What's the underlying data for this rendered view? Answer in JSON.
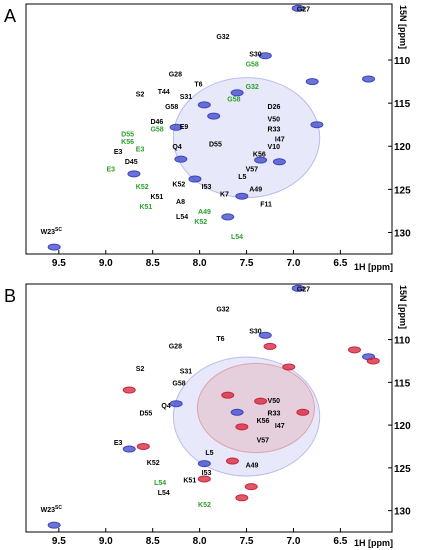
{
  "chart_data": [
    {
      "type": "scatter",
      "panel": "A",
      "xlabel": "1H [ppm]",
      "ylabel": "15N [ppm]",
      "xlim": [
        9.85,
        5.95
      ],
      "ylim": [
        132.5,
        103.5
      ],
      "x_ticks": [
        9.5,
        9.0,
        8.5,
        8.0,
        7.5,
        7.0,
        6.5
      ],
      "y_ticks": [
        110,
        115,
        120,
        125,
        130
      ],
      "series": [
        {
          "color": "#3b45c4",
          "points": [
            {
              "x": 6.95,
              "y": 104.0
            },
            {
              "x": 7.3,
              "y": 109.5
            },
            {
              "x": 6.8,
              "y": 112.5
            },
            {
              "x": 6.2,
              "y": 112.2
            },
            {
              "x": 7.85,
              "y": 116.5
            },
            {
              "x": 8.25,
              "y": 117.8
            },
            {
              "x": 6.75,
              "y": 117.5
            },
            {
              "x": 7.6,
              "y": 113.8
            },
            {
              "x": 7.95,
              "y": 115.2
            },
            {
              "x": 7.15,
              "y": 121.8
            },
            {
              "x": 8.05,
              "y": 123.8
            },
            {
              "x": 8.2,
              "y": 121.5
            },
            {
              "x": 8.7,
              "y": 123.2
            },
            {
              "x": 7.7,
              "y": 128.2
            },
            {
              "x": 9.55,
              "y": 131.7
            },
            {
              "x": 7.55,
              "y": 125.8
            },
            {
              "x": 7.35,
              "y": 121.6
            }
          ]
        }
      ],
      "peak_labels": [
        {
          "text": "G27",
          "color": "#000000"
        },
        {
          "text": "G32",
          "color": "#000000"
        },
        {
          "text": "S30",
          "color": "#000000"
        },
        {
          "text": "G58",
          "color": "#2ca02c"
        },
        {
          "text": "G28",
          "color": "#000000"
        },
        {
          "text": "T44",
          "color": "#000000"
        },
        {
          "text": "T6",
          "color": "#000000"
        },
        {
          "text": "G32",
          "color": "#2ca02c"
        },
        {
          "text": "S2",
          "color": "#000000"
        },
        {
          "text": "S31",
          "color": "#000000"
        },
        {
          "text": "G58",
          "color": "#000000"
        },
        {
          "text": "G58",
          "color": "#2ca02c"
        },
        {
          "text": "D26",
          "color": "#000000"
        },
        {
          "text": "D46",
          "color": "#000000"
        },
        {
          "text": "E9",
          "color": "#000000"
        },
        {
          "text": "V50",
          "color": "#000000"
        },
        {
          "text": "G58",
          "color": "#2ca02c"
        },
        {
          "text": "D55",
          "color": "#2ca02c"
        },
        {
          "text": "R33",
          "color": "#000000"
        },
        {
          "text": "K56",
          "color": "#2ca02c"
        },
        {
          "text": "D55",
          "color": "#000000"
        },
        {
          "text": "I47",
          "color": "#000000"
        },
        {
          "text": "E3",
          "color": "#2ca02c"
        },
        {
          "text": "Q4",
          "color": "#000000"
        },
        {
          "text": "V10",
          "color": "#000000"
        },
        {
          "text": "E3",
          "color": "#000000"
        },
        {
          "text": "K56",
          "color": "#000000"
        },
        {
          "text": "D45",
          "color": "#000000"
        },
        {
          "text": "E3",
          "color": "#2ca02c"
        },
        {
          "text": "V57",
          "color": "#000000"
        },
        {
          "text": "L5",
          "color": "#000000"
        },
        {
          "text": "K52",
          "color": "#2ca02c"
        },
        {
          "text": "K52",
          "color": "#000000"
        },
        {
          "text": "I53",
          "color": "#000000"
        },
        {
          "text": "A49",
          "color": "#000000"
        },
        {
          "text": "K51",
          "color": "#000000"
        },
        {
          "text": "K7",
          "color": "#000000"
        },
        {
          "text": "F11",
          "color": "#000000"
        },
        {
          "text": "K51",
          "color": "#2ca02c"
        },
        {
          "text": "A8",
          "color": "#000000"
        },
        {
          "text": "A49",
          "color": "#2ca02c"
        },
        {
          "text": "L54",
          "color": "#000000"
        },
        {
          "text": "K52",
          "color": "#2ca02c"
        },
        {
          "text": "L54",
          "color": "#2ca02c"
        },
        {
          "text": "W23",
          "sup": "SC",
          "color": "#000000"
        }
      ]
    },
    {
      "type": "scatter",
      "panel": "B",
      "xlabel": "1H [ppm]",
      "ylabel": "15N [ppm]",
      "xlim": [
        9.85,
        5.95
      ],
      "ylim": [
        132.5,
        103.5
      ],
      "x_ticks": [
        9.5,
        9.0,
        8.5,
        8.0,
        7.5,
        7.0,
        6.5
      ],
      "y_ticks": [
        110,
        115,
        120,
        125,
        130
      ],
      "series": [
        {
          "color": "#3b45c4",
          "points": [
            {
              "x": 6.95,
              "y": 104.0
            },
            {
              "x": 7.3,
              "y": 109.5
            },
            {
              "x": 8.25,
              "y": 117.5
            },
            {
              "x": 8.75,
              "y": 122.8
            },
            {
              "x": 7.95,
              "y": 124.5
            },
            {
              "x": 6.2,
              "y": 112.0
            },
            {
              "x": 9.55,
              "y": 131.7
            },
            {
              "x": 7.6,
              "y": 118.5
            }
          ]
        },
        {
          "color": "#d0223a",
          "points": [
            {
              "x": 8.75,
              "y": 115.9
            },
            {
              "x": 7.25,
              "y": 110.8
            },
            {
              "x": 7.05,
              "y": 113.2
            },
            {
              "x": 6.35,
              "y": 111.2
            },
            {
              "x": 6.15,
              "y": 112.5
            },
            {
              "x": 7.7,
              "y": 116.5
            },
            {
              "x": 7.55,
              "y": 120.2
            },
            {
              "x": 8.6,
              "y": 122.5
            },
            {
              "x": 7.65,
              "y": 124.2
            },
            {
              "x": 7.95,
              "y": 126.3
            },
            {
              "x": 7.45,
              "y": 127.2
            },
            {
              "x": 7.55,
              "y": 128.5
            },
            {
              "x": 6.9,
              "y": 118.5
            },
            {
              "x": 7.35,
              "y": 117.2
            }
          ]
        }
      ],
      "peak_labels": [
        {
          "text": "G27",
          "color": "#000000"
        },
        {
          "text": "G32",
          "color": "#000000"
        },
        {
          "text": "S30",
          "color": "#000000"
        },
        {
          "text": "G28",
          "color": "#000000"
        },
        {
          "text": "T6",
          "color": "#000000"
        },
        {
          "text": "S2",
          "color": "#000000"
        },
        {
          "text": "S31",
          "color": "#000000"
        },
        {
          "text": "G58",
          "color": "#000000"
        },
        {
          "text": "Q4",
          "color": "#000000"
        },
        {
          "text": "V50",
          "color": "#000000"
        },
        {
          "text": "D55",
          "color": "#000000"
        },
        {
          "text": "R33",
          "color": "#000000"
        },
        {
          "text": "K56",
          "color": "#000000"
        },
        {
          "text": "I47",
          "color": "#000000"
        },
        {
          "text": "E3",
          "color": "#000000"
        },
        {
          "text": "V57",
          "color": "#000000"
        },
        {
          "text": "L5",
          "color": "#000000"
        },
        {
          "text": "K52",
          "color": "#000000"
        },
        {
          "text": "A49",
          "color": "#000000"
        },
        {
          "text": "I53",
          "color": "#000000"
        },
        {
          "text": "K51",
          "color": "#000000"
        },
        {
          "text": "L54",
          "color": "#2ca02c"
        },
        {
          "text": "L54",
          "color": "#000000"
        },
        {
          "text": "K52",
          "color": "#2ca02c"
        },
        {
          "text": "W23",
          "sup": "SC",
          "color": "#000000"
        }
      ]
    }
  ]
}
